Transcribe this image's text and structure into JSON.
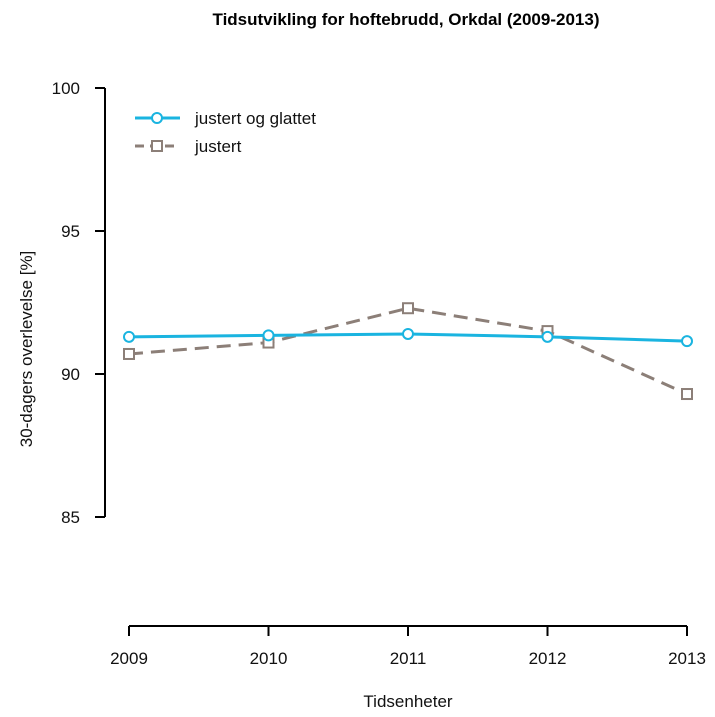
{
  "chart_data": {
    "type": "line",
    "title": "Tidsutvikling for hoftebrudd, Orkdal (2009-2013)",
    "xlabel": "Tidsenheter",
    "ylabel": "30-dagers overlevelse [%]",
    "categories": [
      "2009",
      "2010",
      "2011",
      "2012",
      "2013"
    ],
    "ylim": [
      85,
      100
    ],
    "yticks": [
      85,
      90,
      95,
      100
    ],
    "grid": false,
    "legend_position": "top-left",
    "series": [
      {
        "name": "justert og glattet",
        "values": [
          91.3,
          91.35,
          91.4,
          91.3,
          91.15
        ],
        "color": "#1ab4e0",
        "line_style": "solid",
        "marker": "circle"
      },
      {
        "name": "justert",
        "values": [
          90.7,
          91.1,
          92.3,
          91.5,
          89.3
        ],
        "color": "#8c7f78",
        "line_style": "dashed",
        "marker": "square"
      }
    ]
  }
}
